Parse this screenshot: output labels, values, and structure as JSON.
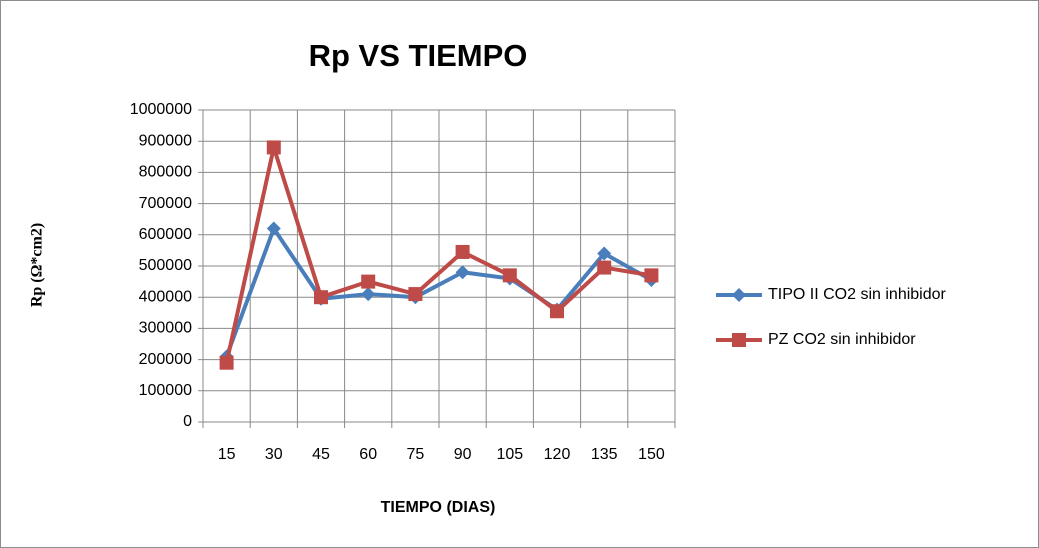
{
  "chart_data": {
    "type": "line",
    "title": "Rp VS TIEMPO",
    "x_label": "TIEMPO (DIAS)",
    "y_label": "Rp (Ω*cm2)",
    "categories": [
      "15",
      "30",
      "45",
      "60",
      "75",
      "90",
      "105",
      "120",
      "135",
      "150"
    ],
    "series": [
      {
        "name": "TIPO II CO2 sin inhibidor",
        "color": "#4a7ebb",
        "marker": "diamond",
        "values": [
          210000,
          620000,
          395000,
          410000,
          400000,
          480000,
          460000,
          360000,
          540000,
          455000
        ]
      },
      {
        "name": "PZ CO2 sin inhibidor",
        "color": "#be4b48",
        "marker": "square",
        "values": [
          190000,
          880000,
          400000,
          450000,
          410000,
          545000,
          470000,
          355000,
          495000,
          470000
        ]
      }
    ],
    "ylim": [
      0,
      1000000
    ],
    "yticks": [
      0,
      100000,
      200000,
      300000,
      400000,
      500000,
      600000,
      700000,
      800000,
      900000,
      1000000
    ],
    "grid": true,
    "legend": "right"
  }
}
